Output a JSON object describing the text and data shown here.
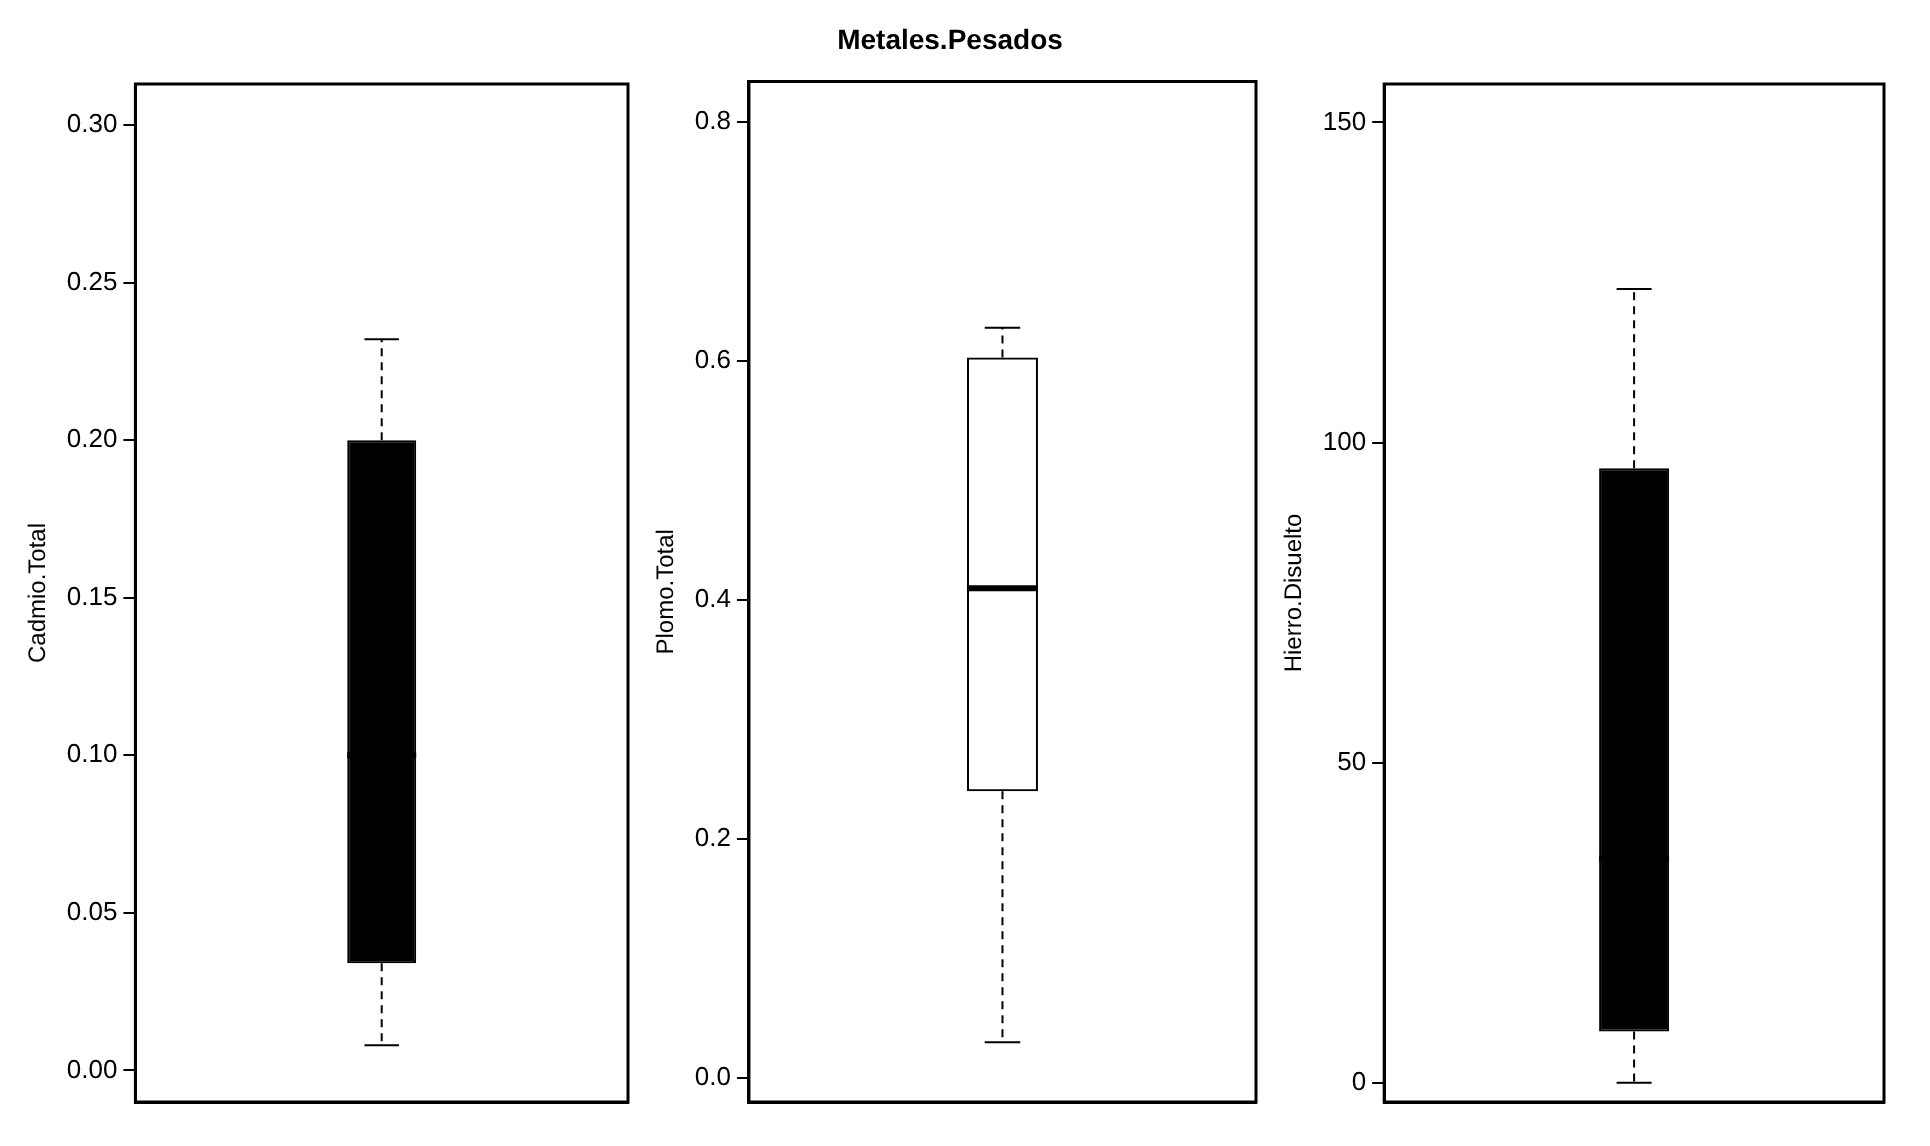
{
  "chart_data": [
    {
      "type": "box",
      "ylabel": "Cadmio.Total",
      "categories": [
        null
      ],
      "color": "#000000",
      "ylim": [
        -0.01,
        0.313
      ],
      "yticks": [
        {
          "value": 0,
          "label": "0.00"
        },
        {
          "value": 0.05,
          "label": "0.05"
        },
        {
          "value": 0.1,
          "label": "0.10"
        },
        {
          "value": 0.15,
          "label": "0.15"
        },
        {
          "value": 0.2,
          "label": "0.20"
        },
        {
          "value": 0.25,
          "label": "0.25"
        },
        {
          "value": 0.3,
          "label": "0.30"
        }
      ],
      "boxes": [
        {
          "low": 0.008,
          "q1": 0.034,
          "median": 0.1,
          "q3": 0.2,
          "high": 0.232
        }
      ]
    },
    {
      "type": "box",
      "title": "Metales.Pesados",
      "ylabel": "Plomo.Total",
      "categories": [
        null
      ],
      "ylim": [
        -0.02,
        0.834
      ],
      "yticks": [
        {
          "value": 0,
          "label": "0.0"
        },
        {
          "value": 0.2,
          "label": "0.2"
        },
        {
          "value": 0.4,
          "label": "0.4"
        },
        {
          "value": 0.6,
          "label": "0.6"
        },
        {
          "value": 0.8,
          "label": "0.8"
        }
      ],
      "boxes": [
        {
          "low": 0.03,
          "q1": 0.24,
          "median": 0.41,
          "q3": 0.603,
          "high": 0.628
        }
      ]
    },
    {
      "type": "box",
      "ylabel": "Hierro.Disuelto",
      "categories": [
        null
      ],
      "color": "#000000",
      "ylim": [
        -3,
        156
      ],
      "yticks": [
        0,
        50,
        100,
        150
      ],
      "boxes": [
        {
          "low": 0,
          "q1": 8,
          "median": 35,
          "q3": 96,
          "high": 124
        }
      ]
    }
  ]
}
